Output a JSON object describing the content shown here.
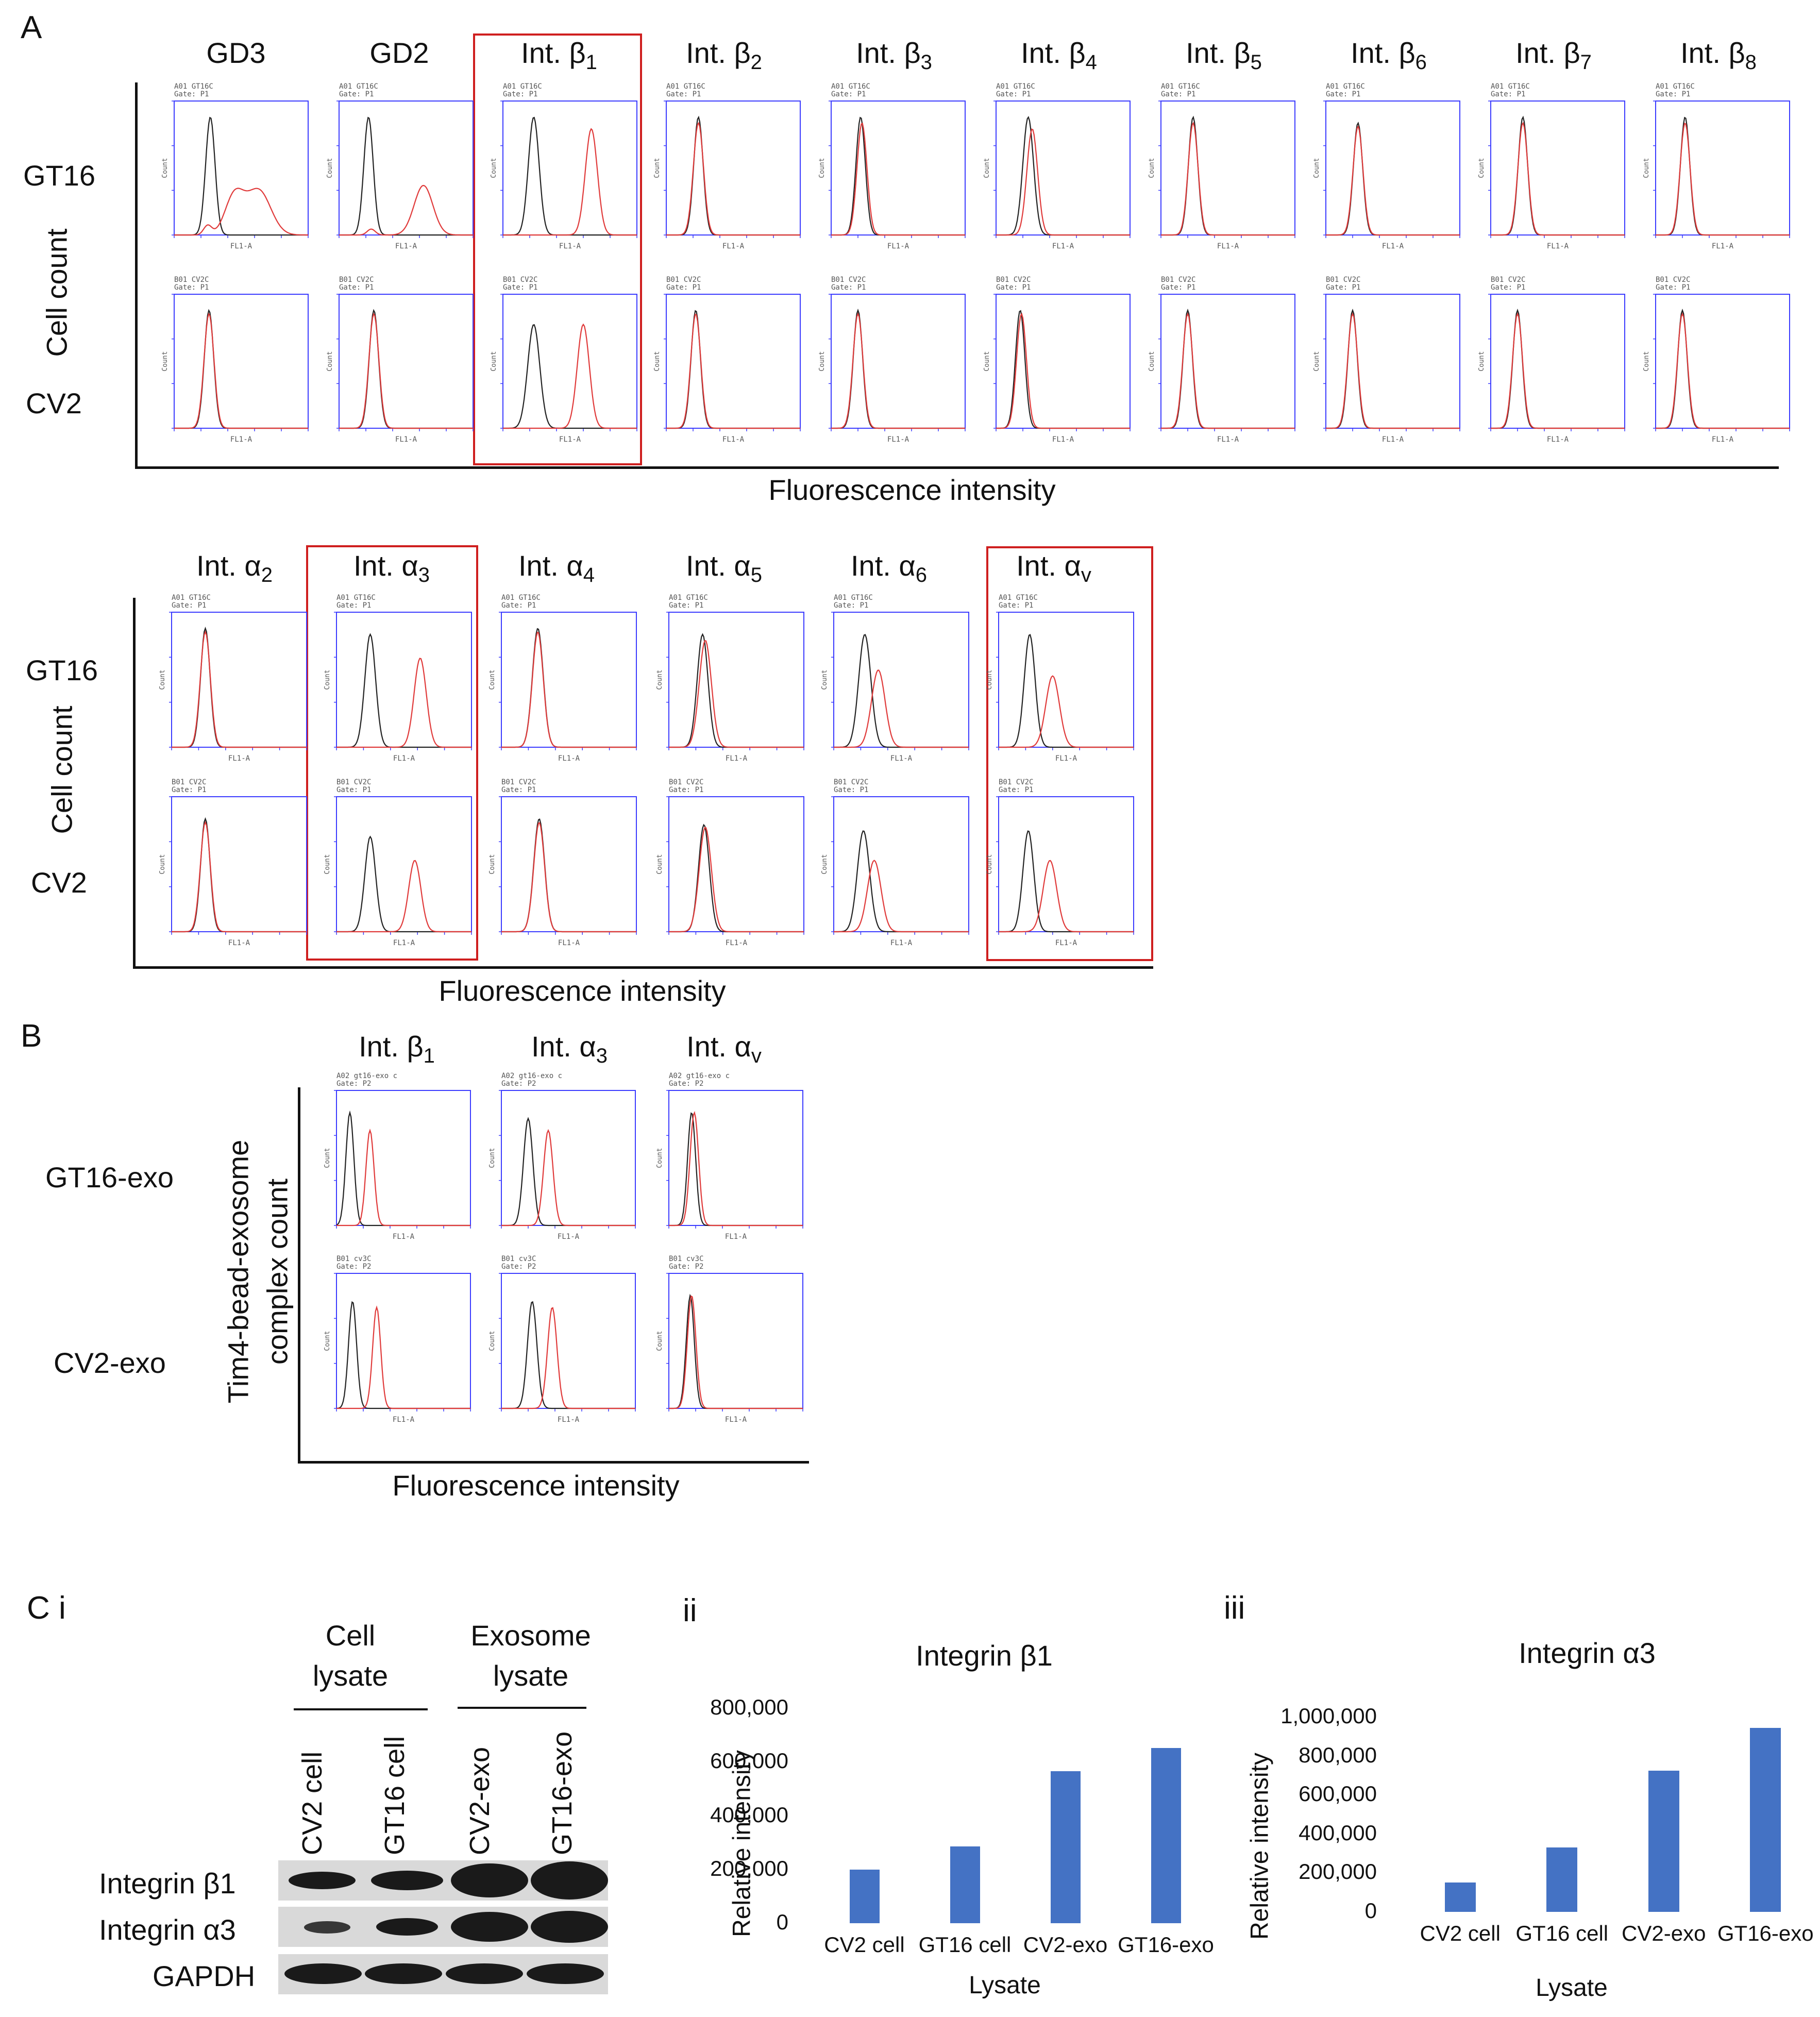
{
  "panelA": {
    "label": "A",
    "top": {
      "columns": [
        "GD3",
        "GD2",
        "Int. β1",
        "Int. β2",
        "Int. β3",
        "Int. β4",
        "Int. β5",
        "Int. β6",
        "Int. β7",
        "Int. β8"
      ],
      "column_subs": [
        "",
        "",
        "1",
        "2",
        "3",
        "4",
        "5",
        "6",
        "7",
        "8"
      ],
      "column_bases": [
        "GD3",
        "GD2",
        "Int. β",
        "Int. β",
        "Int. β",
        "Int. β",
        "Int. β",
        "Int. β",
        "Int. β",
        "Int. β"
      ],
      "rows": [
        "GT16",
        "CV2"
      ],
      "ylabel": "Cell count",
      "xlabel": "Fluorescence intensity",
      "highlighted": [
        "Int. β1"
      ]
    },
    "bottom": {
      "column_bases": [
        "Int. α",
        "Int. α",
        "Int. α",
        "Int. α",
        "Int. α",
        "Int. α"
      ],
      "column_subs": [
        "2",
        "3",
        "4",
        "5",
        "6",
        "v"
      ],
      "rows": [
        "GT16",
        "CV2"
      ],
      "ylabel": "Cell count",
      "xlabel": "Fluorescence intensity",
      "highlighted": [
        "Int. α3",
        "Int. αv"
      ]
    },
    "panel_text": {
      "gt16_line1": "A01 GT16C",
      "gt16_line2": "Gate: P1",
      "cv2_line1": "B01 CV2C",
      "cv2_line2": "Gate: P1",
      "xaxis": "FL1-A",
      "yaxis": "Count"
    }
  },
  "panelB": {
    "label": "B",
    "column_bases": [
      "Int. β",
      "Int. α",
      "Int. α"
    ],
    "column_subs": [
      "1",
      "3",
      "v"
    ],
    "rows": [
      "GT16-exo",
      "CV2-exo"
    ],
    "ylabel_line1": "Tim4-bead-exosome",
    "ylabel_line2": "complex count",
    "xlabel": "Fluorescence intensity",
    "panel_text": {
      "gt16_line1": "A02 gt16-exo c",
      "gt16_line2": "Gate: P2",
      "cv2_line1": "B01 cv3C",
      "cv2_line2": "Gate: P2",
      "xaxis": "FL1-A",
      "yaxis": "Count"
    }
  },
  "panelC": {
    "label_i": "C i",
    "label_ii": "ii",
    "label_iii": "iii",
    "western": {
      "group1": "Cell lysate",
      "group2": "Exosome lysate",
      "lanes": [
        "CV2 cell",
        "GT16 cell",
        "CV2-exo",
        "GT16-exo"
      ],
      "rows": [
        "Integrin β1",
        "Integrin α3",
        "GAPDH"
      ]
    }
  },
  "chart_data": [
    {
      "type": "bar",
      "title": "Integrin β1",
      "ylabel": "Relative intensity",
      "xlabel": "Lysate",
      "categories": [
        "CV2 cell",
        "GT16 cell",
        "CV2-exo",
        "GT16-exo"
      ],
      "values": [
        200000,
        285000,
        565000,
        652000
      ],
      "ylim": [
        0,
        800000
      ],
      "yticks": [
        "800,000",
        "600,000",
        "400,000",
        "200,000",
        "0"
      ],
      "color": "#4472c4",
      "grid": false
    },
    {
      "type": "bar",
      "title": "Integrin α3",
      "ylabel": "Relative intensity",
      "xlabel": "Lysate",
      "categories": [
        "CV2 cell",
        "GT16 cell",
        "CV2-exo",
        "GT16-exo"
      ],
      "values": [
        150000,
        330000,
        725000,
        945000
      ],
      "ylim": [
        0,
        1000000
      ],
      "yticks": [
        "1,000,000",
        "800,000",
        "600,000",
        "400,000",
        "200,000",
        "0"
      ],
      "color": "#4472c4",
      "grid": false
    }
  ]
}
